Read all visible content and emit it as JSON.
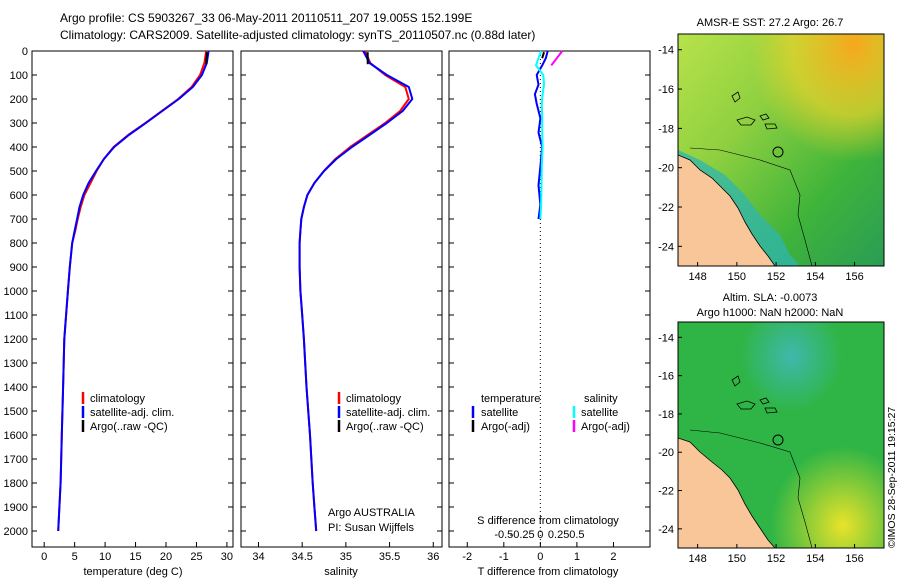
{
  "title": {
    "line1": "Argo profile: CS 5903267_33 06-May-2011 20110511_207 19.005S 152.199E",
    "line2": "Climatology: CARS2009. Satellite-adjusted climatology: synTS_20110507.nc (0.88d later)"
  },
  "depth_ticks": [
    "0",
    "100",
    "200",
    "300",
    "400",
    "500",
    "600",
    "700",
    "800",
    "900",
    "1000",
    "1100",
    "1200",
    "1300",
    "1400",
    "1500",
    "1600",
    "1700",
    "1800",
    "1900",
    "2000"
  ],
  "colors": {
    "climatology": "#ff0000",
    "satellite": "#0000ff",
    "argo": "#000000",
    "satellite_salinity": "#00ffff",
    "argo_salinity": "#ff00ff",
    "land": "#f9c69a",
    "coast": "#000000"
  },
  "panels": {
    "temperature": {
      "xlabel": "temperature (deg C)",
      "legend": [
        "climatology",
        "satellite-adj. clim.",
        "Argo(..raw -QC)"
      ]
    },
    "salinity": {
      "xlabel": "salinity",
      "legend": [
        "climatology",
        "satellite-adj. clim.",
        "Argo(..raw -QC)"
      ],
      "note_line1": "Argo AUSTRALIA",
      "note_line2": "PI: Susan Wijffels"
    },
    "difference": {
      "xlabel_bottom": "T difference from climatology",
      "xlabel_top": "S difference from climatology",
      "legend_head_t": "temperature",
      "legend_head_s": "salinity",
      "legend_t": [
        "satellite",
        "Argo(-adj)"
      ],
      "legend_s": [
        "satellite",
        "Argo(-adj)"
      ]
    }
  },
  "maps": {
    "sst": {
      "title": "AMSR-E SST: 27.2 Argo: 26.7",
      "x_ticks": [
        "148",
        "150",
        "152",
        "154",
        "156"
      ],
      "y_ticks": [
        "-14",
        "-16",
        "-18",
        "-20",
        "-22",
        "-24"
      ]
    },
    "sla": {
      "title_line1": "Altim. SLA: -0.0073",
      "title_line2": "Argo h1000: NaN h2000: NaN",
      "x_ticks": [
        "148",
        "150",
        "152",
        "154",
        "156"
      ],
      "y_ticks": [
        "-14",
        "-16",
        "-18",
        "-20",
        "-22",
        "-24"
      ]
    }
  },
  "footer": "©IMOS 28-Sep-2011 19:15:27",
  "chart_data": [
    {
      "type": "line",
      "xlabel": "temperature (deg C)",
      "ylabel": "",
      "xlim": [
        -2,
        31
      ],
      "ylim": [
        2050,
        0
      ],
      "x_ticks": [
        "0",
        "5",
        "10",
        "15",
        "20",
        "25",
        "30"
      ],
      "series": [
        {
          "name": "climatology",
          "color": "#ff0000",
          "x": [
            26.6,
            26.3,
            25.6,
            24.2,
            22.0,
            19.3,
            16.6,
            13.8,
            11.4,
            9.8,
            8.6,
            7.6,
            6.6,
            6.0,
            5.5,
            5.1,
            4.6,
            4.2,
            3.9,
            3.6,
            3.3,
            3.1,
            2.9,
            2.7,
            2.5,
            2.3
          ],
          "y": [
            0,
            50,
            100,
            150,
            200,
            250,
            300,
            350,
            400,
            450,
            500,
            550,
            600,
            650,
            700,
            750,
            800,
            900,
            1000,
            1100,
            1200,
            1400,
            1600,
            1800,
            1900,
            2000
          ]
        },
        {
          "name": "satellite-adj. clim.",
          "color": "#0000ff",
          "x": [
            27.0,
            26.7,
            25.9,
            24.4,
            22.1,
            19.4,
            16.7,
            13.9,
            11.5,
            9.8,
            8.5,
            7.3,
            6.4,
            5.8,
            5.4,
            5.0,
            4.6,
            4.2,
            3.9,
            3.6,
            3.3,
            3.1,
            2.9,
            2.7,
            2.5,
            2.3
          ],
          "y": [
            0,
            50,
            100,
            150,
            200,
            250,
            300,
            350,
            400,
            450,
            500,
            550,
            600,
            650,
            700,
            750,
            800,
            900,
            1000,
            1100,
            1200,
            1400,
            1600,
            1800,
            1900,
            2000
          ]
        },
        {
          "name": "Argo(..raw -QC)",
          "color": "#000000",
          "x": [
            26.7,
            26.7,
            26.6,
            26.6
          ],
          "y": [
            5,
            20,
            40,
            55
          ]
        }
      ]
    },
    {
      "type": "line",
      "xlabel": "salinity",
      "ylabel": "",
      "xlim": [
        33.8,
        36.1
      ],
      "ylim": [
        2050,
        0
      ],
      "x_ticks": [
        "34",
        "34.5",
        "35",
        "35.5",
        "36"
      ],
      "series": [
        {
          "name": "climatology",
          "color": "#ff0000",
          "x": [
            35.22,
            35.28,
            35.45,
            35.68,
            35.72,
            35.62,
            35.45,
            35.25,
            35.05,
            34.88,
            34.75,
            34.64,
            34.56,
            34.52,
            34.49,
            34.48,
            34.47,
            34.47,
            34.48,
            34.5,
            34.52,
            34.55,
            34.59,
            34.62,
            34.64,
            34.66
          ],
          "y": [
            0,
            50,
            100,
            150,
            200,
            250,
            300,
            350,
            400,
            450,
            500,
            550,
            600,
            650,
            700,
            750,
            800,
            900,
            1000,
            1100,
            1200,
            1400,
            1600,
            1800,
            1900,
            2000
          ]
        },
        {
          "name": "satellite-adj. clim.",
          "color": "#0000ff",
          "x": [
            35.2,
            35.27,
            35.47,
            35.72,
            35.76,
            35.65,
            35.47,
            35.27,
            35.07,
            34.89,
            34.75,
            34.64,
            34.56,
            34.52,
            34.49,
            34.48,
            34.47,
            34.47,
            34.48,
            34.5,
            34.52,
            34.55,
            34.59,
            34.62,
            34.64,
            34.66
          ],
          "y": [
            0,
            50,
            100,
            150,
            200,
            250,
            300,
            350,
            400,
            450,
            500,
            550,
            600,
            650,
            700,
            750,
            800,
            900,
            1000,
            1100,
            1200,
            1400,
            1600,
            1800,
            1900,
            2000
          ]
        },
        {
          "name": "Argo(..raw -QC)",
          "color": "#000000",
          "x": [
            35.25,
            35.25,
            35.25
          ],
          "y": [
            5,
            30,
            55
          ]
        }
      ]
    },
    {
      "type": "line",
      "xlabel": "T difference from climatology",
      "ylabel": "",
      "xlim": [
        -2.5,
        3.0
      ],
      "ylim": [
        2050,
        0
      ],
      "x_ticks": [
        "-2",
        "-1",
        "0",
        "1",
        "2"
      ],
      "x2label": "S difference from climatology",
      "x2_ticks": [
        "-0.5",
        "-0.25",
        "0",
        "0.25",
        "0.5"
      ],
      "series": [
        {
          "name": "temperature satellite",
          "color": "#0000ff",
          "x": [
            0.2,
            0.15,
            0.05,
            -0.1,
            -0.05,
            -0.15,
            -0.1,
            0.0,
            -0.05,
            0.05,
            0.0,
            -0.05,
            0.0,
            -0.05
          ],
          "y": [
            0,
            30,
            60,
            100,
            140,
            180,
            220,
            280,
            340,
            400,
            480,
            560,
            640,
            700
          ]
        },
        {
          "name": "salinity satellite",
          "color": "#00ffff",
          "x": [
            0.02,
            -0.05,
            -0.12,
            0.08,
            0.1,
            0.06,
            0.04,
            0.05,
            0.05,
            0.06,
            0.04,
            0.03,
            0.02,
            0.0
          ],
          "y": [
            0,
            30,
            60,
            100,
            140,
            180,
            220,
            280,
            340,
            400,
            480,
            560,
            640,
            700
          ]
        },
        {
          "name": "temperature Argo(-adj)",
          "color": "#000000",
          "x": [
            0.1,
            0.05
          ],
          "y": [
            5,
            30
          ]
        },
        {
          "name": "salinity Argo(-adj)",
          "color": "#ff00ff",
          "x": [
            0.6,
            0.45,
            0.3
          ],
          "y": [
            0,
            30,
            60
          ]
        }
      ]
    },
    {
      "type": "heatmap",
      "title": "AMSR-E SST: 27.2 Argo: 26.7",
      "xlim": [
        147,
        157.5
      ],
      "ylim": [
        -25,
        -13.2
      ],
      "x_ticks": [
        "148",
        "150",
        "152",
        "154",
        "156"
      ],
      "y_ticks": [
        "-14",
        "-16",
        "-18",
        "-20",
        "-22",
        "-24"
      ],
      "argo_position": [
        152.199,
        -19.005
      ]
    },
    {
      "type": "heatmap",
      "title": "Altim. SLA: -0.0073",
      "subtitle": "Argo h1000: NaN h2000: NaN",
      "xlim": [
        147,
        157.5
      ],
      "ylim": [
        -25,
        -13.2
      ],
      "x_ticks": [
        "148",
        "150",
        "152",
        "154",
        "156"
      ],
      "y_ticks": [
        "-14",
        "-16",
        "-18",
        "-20",
        "-22",
        "-24"
      ],
      "argo_position": [
        152.199,
        -19.005
      ]
    }
  ]
}
